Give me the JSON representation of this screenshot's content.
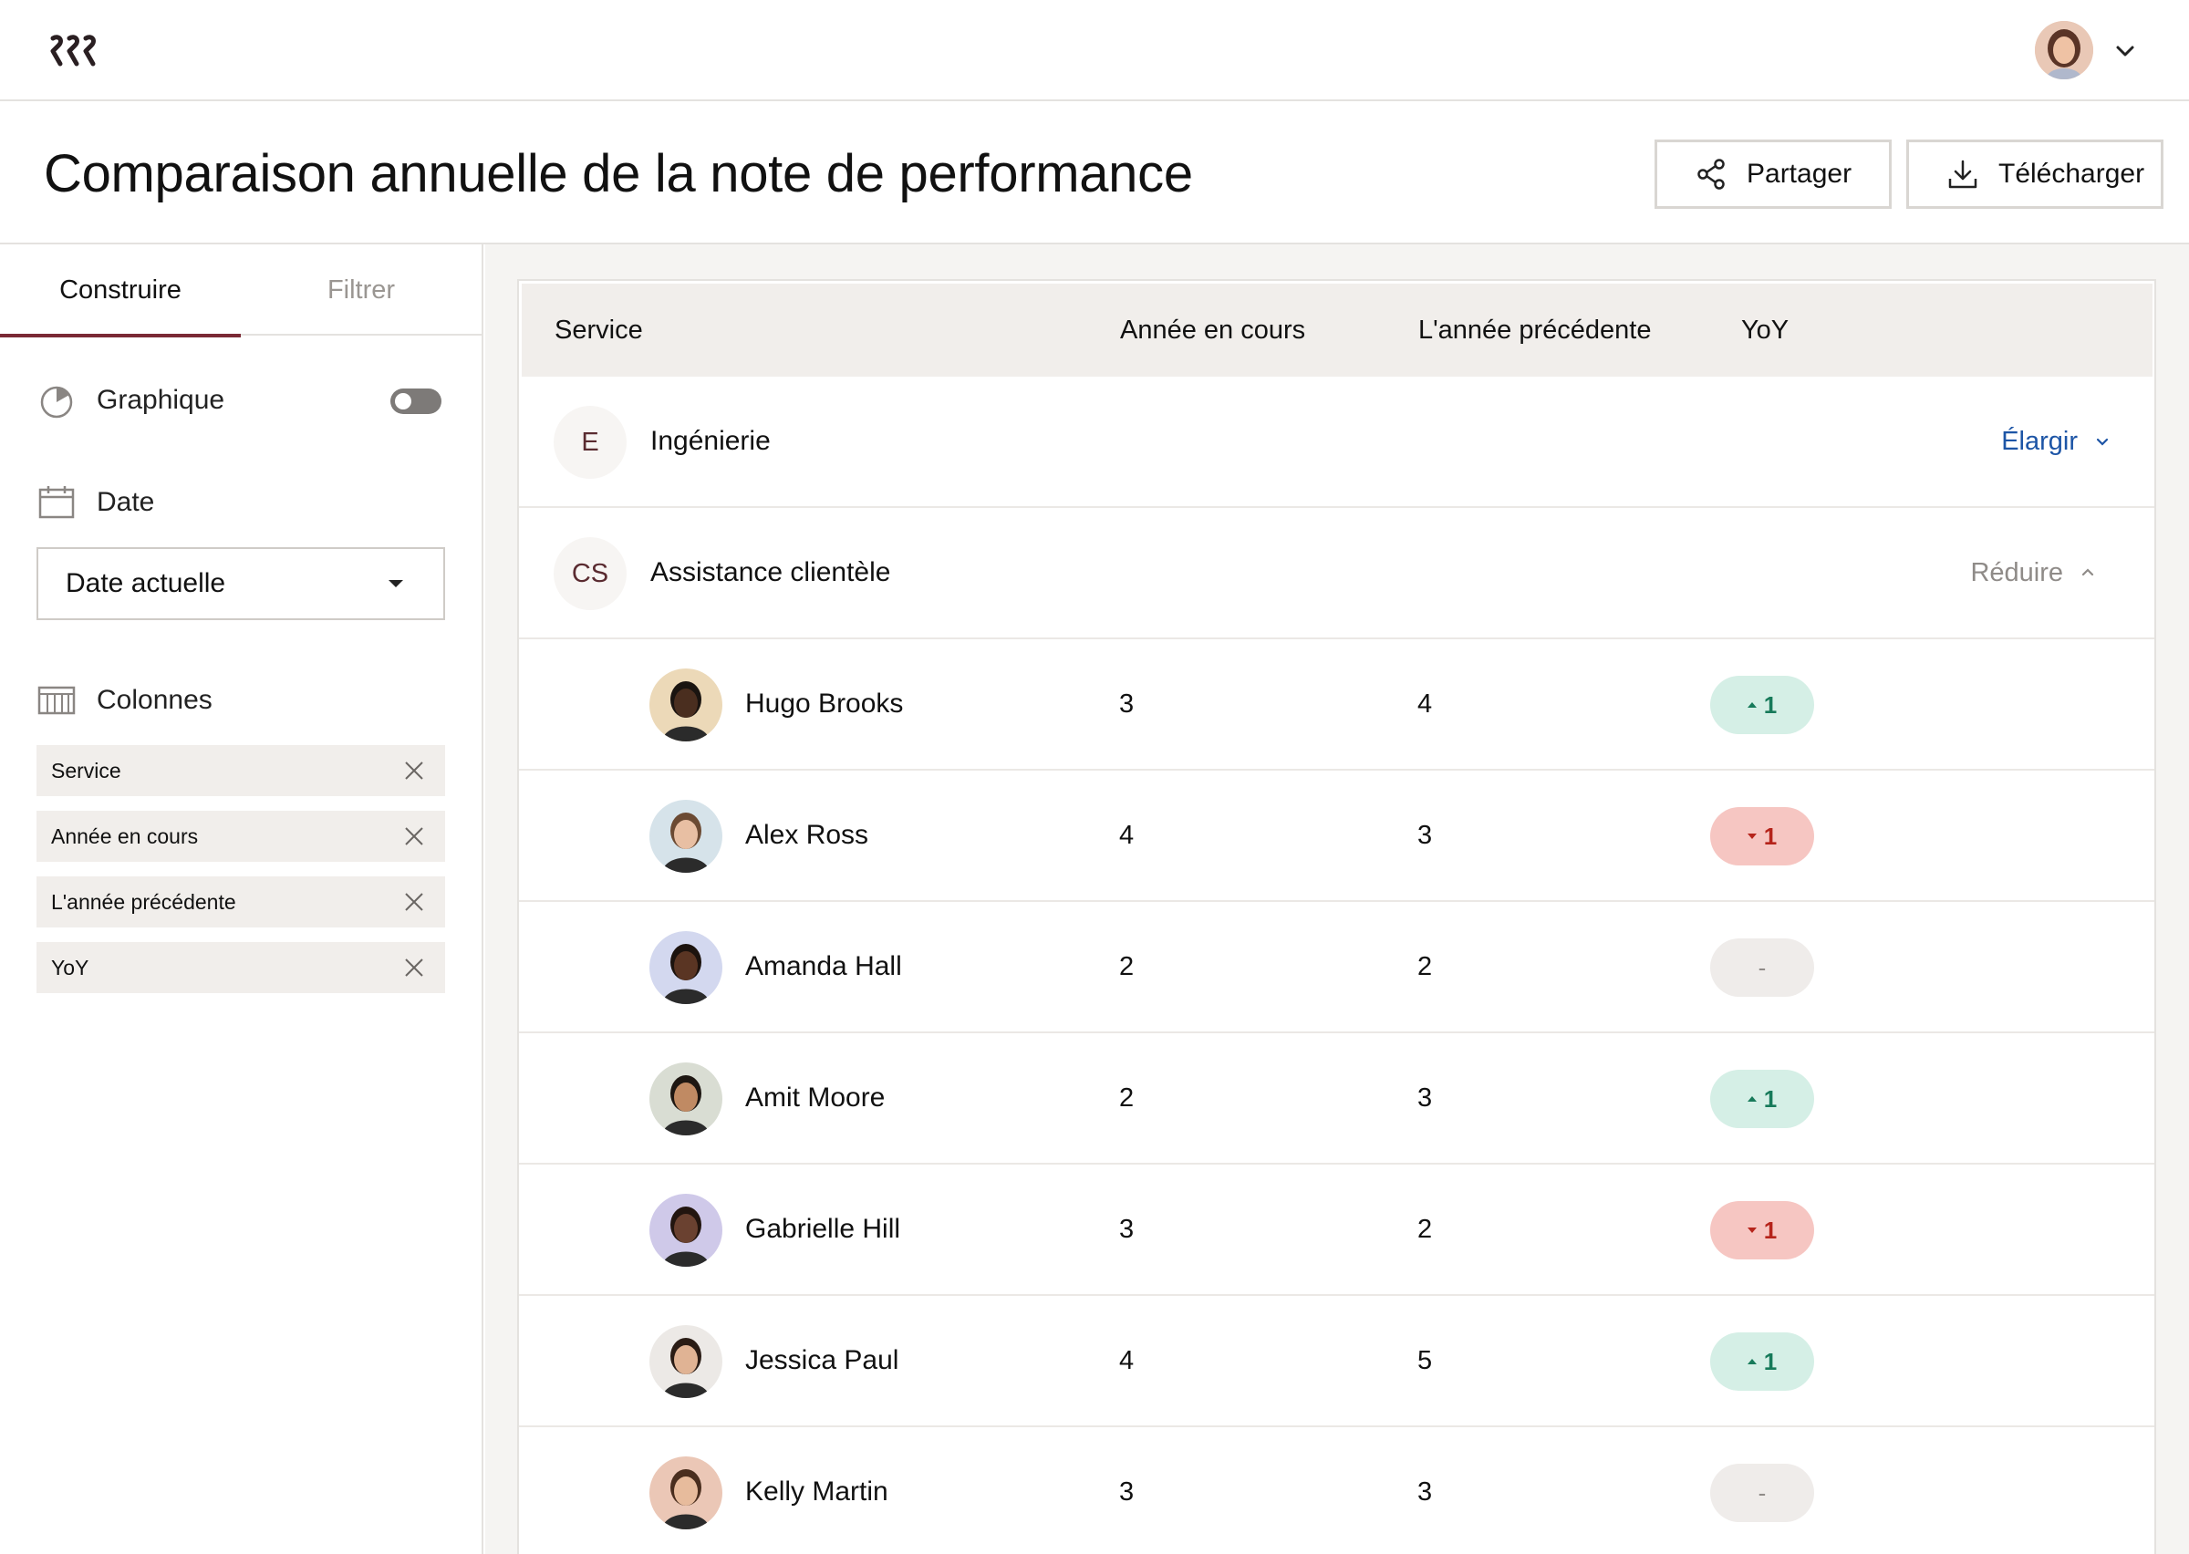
{
  "header": {
    "page_title": "Comparaison annuelle de la note de performance",
    "share_label": "Partager",
    "download_label": "Télécharger"
  },
  "sidebar": {
    "tabs": [
      {
        "label": "Construire",
        "active": true
      },
      {
        "label": "Filtrer",
        "active": false
      }
    ],
    "chart_label": "Graphique",
    "chart_toggle_on": false,
    "date_label": "Date",
    "date_value": "Date actuelle",
    "columns_label": "Colonnes",
    "columns": [
      "Service",
      "Année en cours",
      "L'année précédente",
      "YoY"
    ]
  },
  "table": {
    "headers": {
      "service": "Service",
      "current": "Année en cours",
      "previous": "L'année précédente",
      "yoy": "YoY"
    },
    "groups": [
      {
        "initials": "E",
        "name": "Ingénierie",
        "action": "Élargir",
        "expanded": false
      },
      {
        "initials": "CS",
        "name": "Assistance clientèle",
        "action": "Réduire",
        "expanded": true
      }
    ],
    "rows": [
      {
        "name": "Hugo Brooks",
        "current": "3",
        "previous": "4",
        "yoy": "1",
        "trend": "up",
        "avatar_color": "#ecd9b8",
        "skin": "#4a2e1f",
        "hair": "#1a1410"
      },
      {
        "name": "Alex Ross",
        "current": "4",
        "previous": "3",
        "yoy": "1",
        "trend": "down",
        "avatar_color": "#d6e3ea",
        "skin": "#e8bfa3",
        "hair": "#6b4a33"
      },
      {
        "name": "Amanda Hall",
        "current": "2",
        "previous": "2",
        "yoy": "-",
        "trend": "flat",
        "avatar_color": "#d3d8ef",
        "skin": "#5a3523",
        "hair": "#1c130e"
      },
      {
        "name": "Amit Moore",
        "current": "2",
        "previous": "3",
        "yoy": "1",
        "trend": "up",
        "avatar_color": "#d9ddd3",
        "skin": "#c08a63",
        "hair": "#1e1712"
      },
      {
        "name": "Gabrielle Hill",
        "current": "3",
        "previous": "2",
        "yoy": "1",
        "trend": "down",
        "avatar_color": "#cfc9e9",
        "skin": "#6a4130",
        "hair": "#22150f"
      },
      {
        "name": "Jessica Paul",
        "current": "4",
        "previous": "5",
        "yoy": "1",
        "trend": "up",
        "avatar_color": "#ece9e6",
        "skin": "#e0b394",
        "hair": "#2a1c15"
      },
      {
        "name": "Kelly Martin",
        "current": "3",
        "previous": "3",
        "yoy": "-",
        "trend": "flat",
        "avatar_color": "#ebc7b6",
        "skin": "#e7bb9c",
        "hair": "#4a2e1e"
      }
    ]
  },
  "colors": {
    "accent": "#7a2a35",
    "link": "#1d55a6",
    "up_bg": "#d5efe6",
    "up_fg": "#177a5a",
    "down_bg": "#f6c6c2",
    "down_fg": "#b5231a"
  },
  "icons": {
    "logo": "brand-logo",
    "share": "share-icon",
    "download": "download-icon",
    "chart": "pie-chart-icon",
    "date": "calendar-icon",
    "columns": "columns-icon",
    "remove": "close-icon",
    "chevron": "chevron-down-icon"
  }
}
